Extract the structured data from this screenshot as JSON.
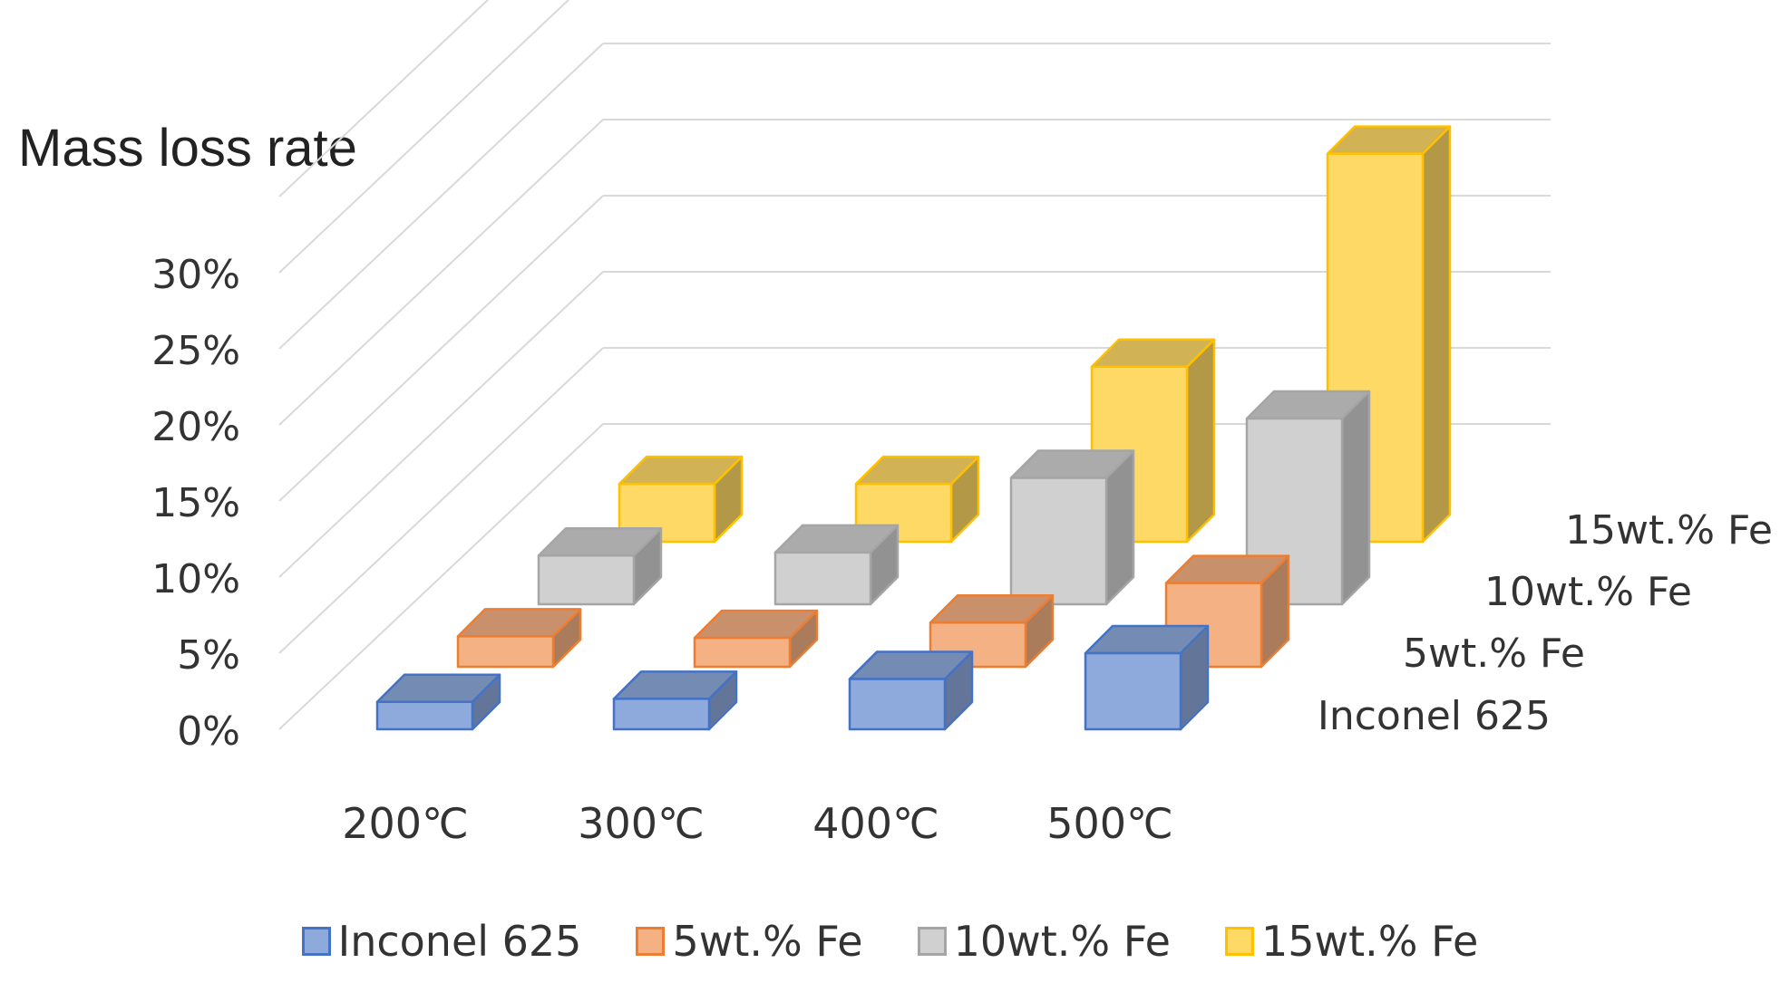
{
  "chart_data": {
    "type": "bar",
    "title": "Mass loss rate",
    "xlabel": "",
    "ylabel": "",
    "categories": [
      "200℃",
      "300℃",
      "400℃",
      "500℃"
    ],
    "y_ticks": [
      "0%",
      "5%",
      "10%",
      "15%",
      "20%",
      "25%",
      "30%"
    ],
    "ylim": [
      0,
      35
    ],
    "series": [
      {
        "name": "Inconel 625",
        "values": [
          1.8,
          2.0,
          3.3,
          5.0
        ],
        "color": "#8EA9DB",
        "edge": "#4472C4"
      },
      {
        "name": "5wt.% Fe",
        "values": [
          2.0,
          1.9,
          2.9,
          5.5
        ],
        "color": "#F4B183",
        "edge": "#ED7D31"
      },
      {
        "name": "10wt.% Fe",
        "values": [
          3.2,
          3.4,
          8.3,
          12.2
        ],
        "color": "#D0D0D0",
        "edge": "#A5A5A5"
      },
      {
        "name": "15wt.% Fe",
        "values": [
          3.8,
          3.8,
          11.5,
          25.5
        ],
        "color": "#FFD966",
        "edge": "#FFC000"
      }
    ],
    "grid": true,
    "legend_position": "bottom"
  },
  "legend": {
    "items": [
      {
        "label": "Inconel 625",
        "color": "#8EA9DB",
        "edge": "#4472C4"
      },
      {
        "label": "5wt.% Fe",
        "color": "#F4B183",
        "edge": "#ED7D31"
      },
      {
        "label": "10wt.% Fe",
        "color": "#D0D0D0",
        "edge": "#A5A5A5"
      },
      {
        "label": "15wt.% Fe",
        "color": "#FFD966",
        "edge": "#FFC000"
      }
    ]
  }
}
